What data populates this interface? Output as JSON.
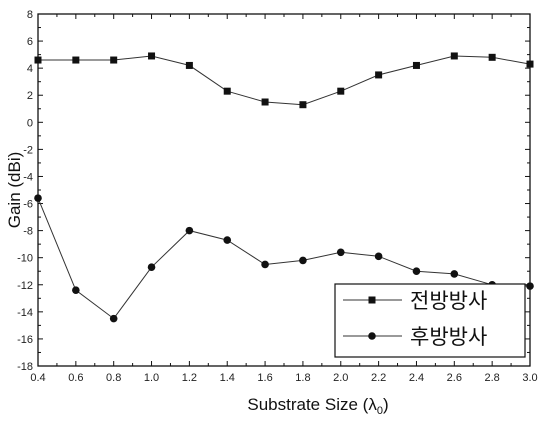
{
  "chart_data": {
    "type": "line",
    "xlabel": "Substrate Size (λ",
    "xlabel_sub": "0",
    "xlabel_end": ")",
    "ylabel": "Gain (dBi)",
    "xlim": [
      0.4,
      3.0
    ],
    "ylim": [
      -18,
      8
    ],
    "x_ticks": [
      "0.4",
      "0.6",
      "0.8",
      "1.0",
      "1.2",
      "1.4",
      "1.6",
      "1.8",
      "2.0",
      "2.2",
      "2.4",
      "2.6",
      "2.8",
      "3.0"
    ],
    "y_ticks": [
      "8",
      "6",
      "4",
      "2",
      "0",
      "-2",
      "-4",
      "-6",
      "-8",
      "-10",
      "-12",
      "-14",
      "-16",
      "-18"
    ],
    "grid": false,
    "legend_position": "bottom-right",
    "x": [
      0.4,
      0.6,
      0.8,
      1.0,
      1.2,
      1.4,
      1.6,
      1.8,
      2.0,
      2.2,
      2.4,
      2.6,
      2.8,
      3.0
    ],
    "series": [
      {
        "name": "전방방사",
        "marker": "square",
        "values": [
          4.6,
          4.6,
          4.6,
          4.9,
          4.2,
          2.3,
          1.5,
          1.3,
          2.3,
          3.5,
          4.2,
          4.9,
          4.8,
          4.3
        ]
      },
      {
        "name": "후방방사",
        "marker": "circle",
        "values": [
          -5.6,
          -12.4,
          -14.5,
          -10.7,
          -8.0,
          -8.7,
          -10.5,
          -10.2,
          -9.6,
          -9.9,
          -11.0,
          -11.2,
          -12.0,
          -12.1
        ]
      }
    ]
  }
}
